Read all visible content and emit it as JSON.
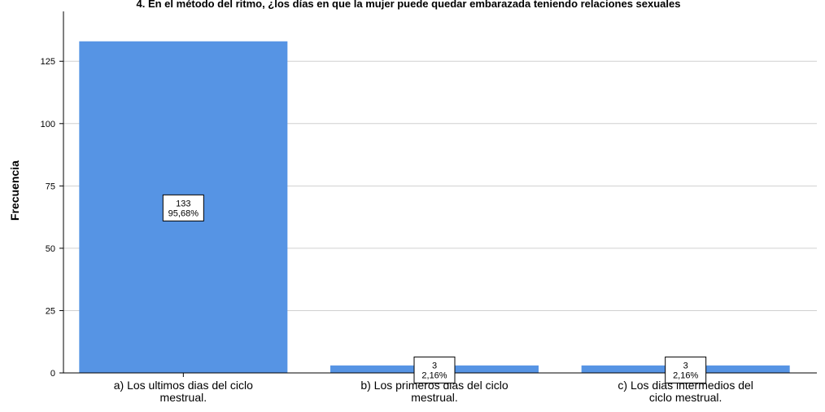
{
  "chart_data": {
    "type": "bar",
    "title": "4. En el método del ritmo, ¿los días en que la mujer puede quedar embarazada teniendo relaciones sexuales",
    "xlabel": "",
    "ylabel": "Frecuencia",
    "ylim": [
      0,
      145
    ],
    "yticks": [
      0,
      25,
      50,
      75,
      100,
      125
    ],
    "grid": true,
    "bar_color": "#5694e4",
    "categories": [
      [
        "a) Los ultimos dias del ciclo",
        "mestrual."
      ],
      [
        "b) Los primeros dias del ciclo",
        "mestrual."
      ],
      [
        "c) Los dias intermedios del",
        "ciclo mestrual."
      ]
    ],
    "values": [
      133,
      3,
      3
    ],
    "value_labels": [
      "133",
      "3",
      "3"
    ],
    "percent_labels": [
      "95,68%",
      "2,16%",
      "2,16%"
    ]
  }
}
